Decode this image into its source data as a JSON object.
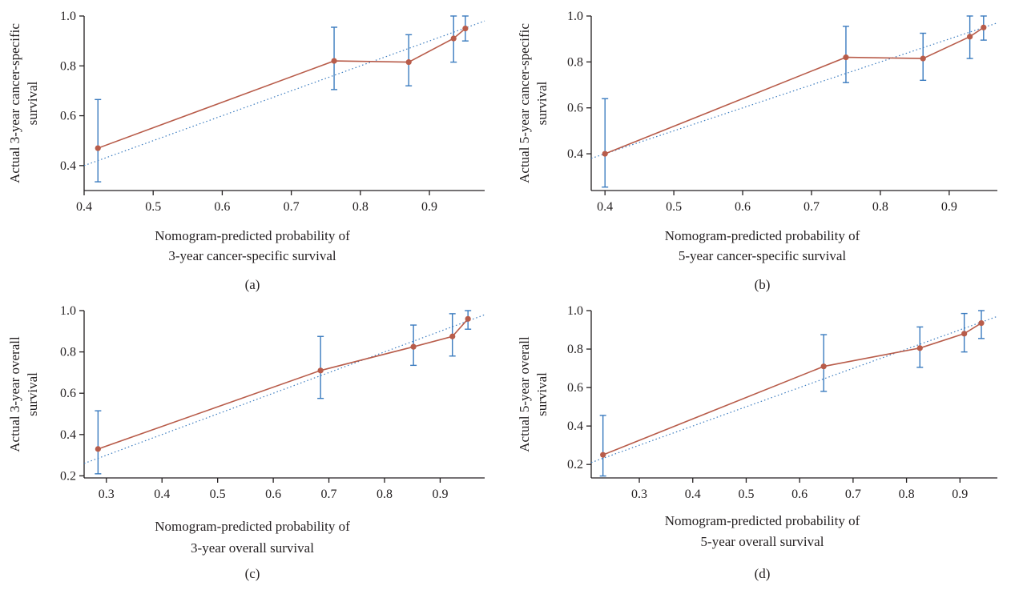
{
  "colors": {
    "calibration": "#b85c4a",
    "errorbar": "#3a7bbf",
    "ideal": "#3a7bbf",
    "axis": "#231f20"
  },
  "chart_data": [
    {
      "type": "line",
      "panel_label": "(a)",
      "xlabel": [
        "Nomogram-predicted probability of",
        "3-year cancer-specific survival"
      ],
      "ylabel": [
        "Actual 3-year cancer-specific",
        "survival"
      ],
      "xlim": [
        0.4,
        0.98
      ],
      "ylim": [
        0.3,
        1.0
      ],
      "xticks": [
        0.4,
        0.5,
        0.6,
        0.7,
        0.8,
        0.9
      ],
      "yticks": [
        0.4,
        0.6,
        0.8,
        1.0
      ],
      "grid": false,
      "series": [
        {
          "values": [
            {
              "x": 0.42,
              "y": 0.47,
              "lo": 0.335,
              "hi": 0.665
            },
            {
              "x": 0.762,
              "y": 0.82,
              "lo": 0.705,
              "hi": 0.955
            },
            {
              "x": 0.87,
              "y": 0.815,
              "lo": 0.72,
              "hi": 0.925
            },
            {
              "x": 0.935,
              "y": 0.91,
              "lo": 0.815,
              "hi": 1.0
            },
            {
              "x": 0.952,
              "y": 0.95,
              "lo": 0.9,
              "hi": 1.0
            }
          ]
        }
      ]
    },
    {
      "type": "line",
      "panel_label": "(b)",
      "xlabel": [
        "Nomogram-predicted probability of",
        "5-year cancer-specific survival"
      ],
      "ylabel": [
        "Actual 5-year cancer-specific",
        "survival"
      ],
      "xlim": [
        0.38,
        0.97
      ],
      "ylim": [
        0.24,
        1.0
      ],
      "xticks": [
        0.4,
        0.5,
        0.6,
        0.7,
        0.8,
        0.9
      ],
      "yticks": [
        0.4,
        0.6,
        0.8,
        1.0
      ],
      "grid": false,
      "series": [
        {
          "values": [
            {
              "x": 0.4,
              "y": 0.4,
              "lo": 0.255,
              "hi": 0.64
            },
            {
              "x": 0.75,
              "y": 0.82,
              "lo": 0.71,
              "hi": 0.955
            },
            {
              "x": 0.862,
              "y": 0.815,
              "lo": 0.72,
              "hi": 0.925
            },
            {
              "x": 0.93,
              "y": 0.91,
              "lo": 0.815,
              "hi": 1.0
            },
            {
              "x": 0.95,
              "y": 0.95,
              "lo": 0.895,
              "hi": 1.0
            }
          ]
        }
      ]
    },
    {
      "type": "line",
      "panel_label": "(c)",
      "xlabel": [
        "Nomogram-predicted probability of",
        "3-year overall survival"
      ],
      "ylabel": [
        "Actual 3-year overall",
        "survival"
      ],
      "xlim": [
        0.26,
        0.98
      ],
      "ylim": [
        0.19,
        1.0
      ],
      "xticks": [
        0.3,
        0.4,
        0.5,
        0.6,
        0.7,
        0.8,
        0.9
      ],
      "yticks": [
        0.2,
        0.4,
        0.6,
        0.8,
        1.0
      ],
      "grid": false,
      "series": [
        {
          "values": [
            {
              "x": 0.285,
              "y": 0.33,
              "lo": 0.21,
              "hi": 0.515
            },
            {
              "x": 0.685,
              "y": 0.71,
              "lo": 0.575,
              "hi": 0.875
            },
            {
              "x": 0.852,
              "y": 0.825,
              "lo": 0.735,
              "hi": 0.93
            },
            {
              "x": 0.922,
              "y": 0.875,
              "lo": 0.78,
              "hi": 0.985
            },
            {
              "x": 0.95,
              "y": 0.96,
              "lo": 0.91,
              "hi": 1.0
            }
          ]
        }
      ]
    },
    {
      "type": "line",
      "panel_label": "(d)",
      "xlabel": [
        "Nomogram-predicted probability of",
        "5-year overall survival"
      ],
      "ylabel": [
        "Actual 5-year overall",
        "survival"
      ],
      "xlim": [
        0.21,
        0.97
      ],
      "ylim": [
        0.13,
        1.0
      ],
      "xticks": [
        0.3,
        0.4,
        0.5,
        0.6,
        0.7,
        0.8,
        0.9
      ],
      "yticks": [
        0.2,
        0.4,
        0.6,
        0.8,
        1.0
      ],
      "grid": false,
      "series": [
        {
          "values": [
            {
              "x": 0.232,
              "y": 0.25,
              "lo": 0.14,
              "hi": 0.455
            },
            {
              "x": 0.645,
              "y": 0.71,
              "lo": 0.58,
              "hi": 0.875
            },
            {
              "x": 0.825,
              "y": 0.805,
              "lo": 0.705,
              "hi": 0.915
            },
            {
              "x": 0.908,
              "y": 0.88,
              "lo": 0.785,
              "hi": 0.985
            },
            {
              "x": 0.94,
              "y": 0.935,
              "lo": 0.855,
              "hi": 1.0
            }
          ]
        }
      ]
    }
  ]
}
